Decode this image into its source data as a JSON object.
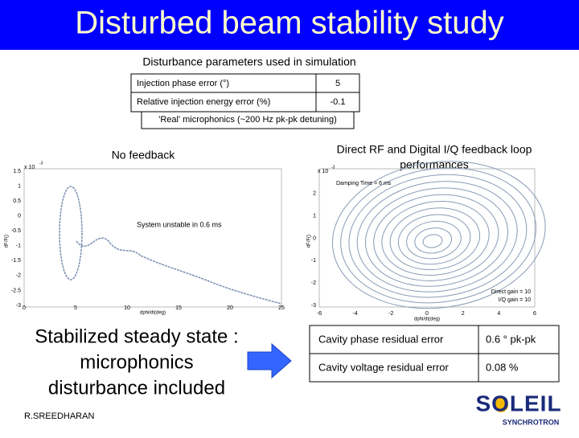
{
  "title": "Disturbed beam stability study",
  "parameters": {
    "caption": "Disturbance parameters used in simulation",
    "rows": [
      [
        "Injection phase error (°)",
        "5"
      ],
      [
        "Relative injection energy error (%)",
        "-0.1"
      ]
    ],
    "note": "'Real' microphonics (~200 Hz pk-pk detuning)"
  },
  "left_plot": {
    "title": "No feedback",
    "scale": "x 10",
    "exponent": "-3",
    "annotation": "System unstable in 0.6 ms",
    "x_label": "dphi/dt(deg)",
    "y_label": "dF/F()",
    "yticks": [
      "1.5",
      "1",
      "0.5",
      "0",
      "-0.5",
      "-1",
      "-1.5",
      "-2",
      "-2.5",
      "-3"
    ],
    "xticks": [
      "0",
      "5",
      "10",
      "15",
      "20",
      "25"
    ]
  },
  "right_plot": {
    "title_lines": [
      "Direct RF and Digital I/Q feedback loop",
      "performances"
    ],
    "scale": "x 10",
    "exponent": "-3",
    "x_label": "dphi/dt(deg)",
    "y_label": "dF/F()",
    "annotations": [
      "Damping Time = 6 ms",
      "Direct gain = 10",
      "I/Q gain = 10"
    ],
    "yticks": [
      "3",
      "2",
      "1",
      "0",
      "-1",
      "-2",
      "-3"
    ],
    "xticks": [
      "-6",
      "-4",
      "-2",
      "0",
      "2",
      "4",
      "6"
    ]
  },
  "conclusion": [
    "Stabilized steady state :",
    "microphonics",
    "disturbance included"
  ],
  "results": [
    [
      "Cavity phase residual error",
      "0.6 ° pk-pk"
    ],
    [
      "Cavity voltage residual error",
      "0.08 %"
    ]
  ],
  "author": "R.SREEDHARAN",
  "logo": {
    "name": "SOLEIL",
    "subtitle": "SYNCHROTRON"
  }
}
